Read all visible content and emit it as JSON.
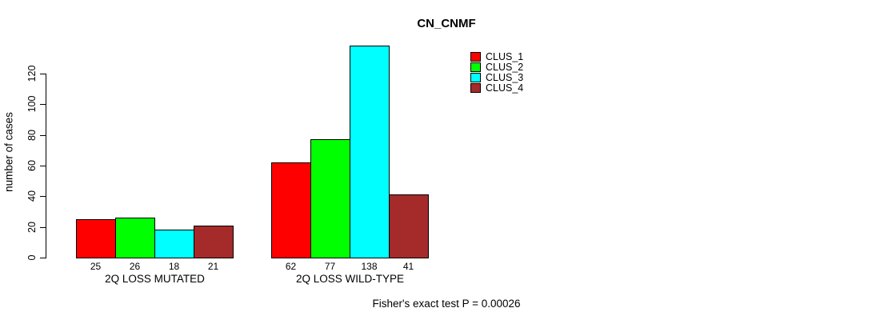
{
  "page": {
    "background_color": "#ffffff",
    "text_color": "#000000"
  },
  "chart_data": {
    "type": "bar",
    "title": "CN_CNMF",
    "ylabel": "number of cases",
    "xlabel": "",
    "categories": [
      "2Q LOSS MUTATED",
      "2Q LOSS WILD-TYPE"
    ],
    "series": [
      {
        "name": "CLUS_1",
        "color": "#FF0000",
        "values": [
          25,
          62
        ]
      },
      {
        "name": "CLUS_2",
        "color": "#00FF00",
        "values": [
          26,
          77
        ]
      },
      {
        "name": "CLUS_3",
        "color": "#00FFFF",
        "values": [
          18,
          138
        ]
      },
      {
        "name": "CLUS_4",
        "color": "#A52A2A",
        "values": [
          21,
          41
        ]
      }
    ],
    "yticks": [
      0,
      20,
      40,
      60,
      80,
      100,
      120
    ],
    "ylim": [
      0,
      138
    ],
    "grid": false,
    "bar_value_labels_shown": true,
    "legend_position": "top-right",
    "footnote": "Fisher's exact test P = 0.00026"
  }
}
